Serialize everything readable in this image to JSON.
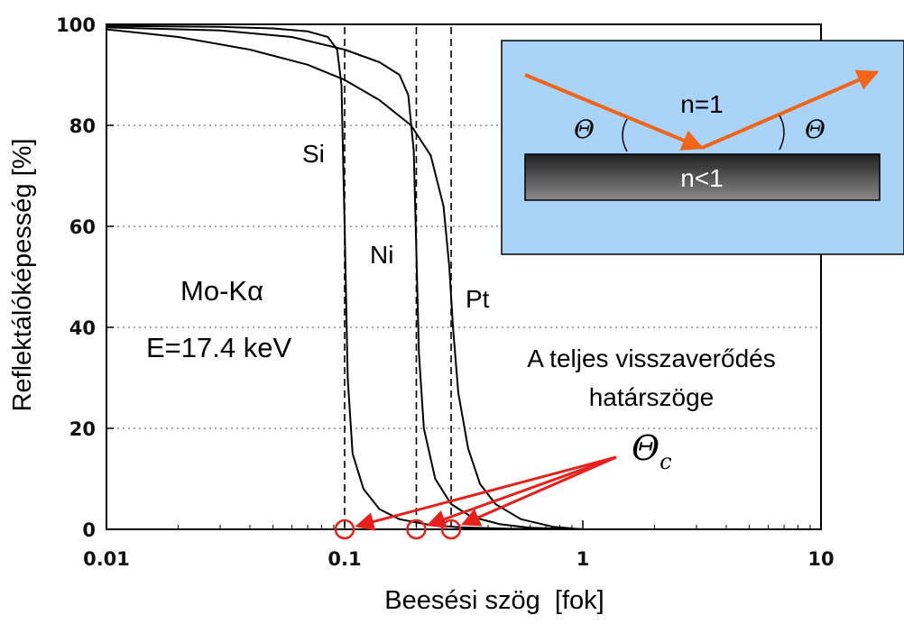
{
  "chart_data": {
    "type": "line",
    "xlabel": "Beesési szög  [fok]",
    "ylabel": "Reflektálóképesség [%]",
    "xscale": "log",
    "xlim": [
      0.01,
      10
    ],
    "ylim": [
      0,
      100
    ],
    "x_ticks": [
      "0.01",
      "0.1",
      "1",
      "10"
    ],
    "y_ticks": [
      "0",
      "20",
      "40",
      "60",
      "80",
      "100"
    ],
    "grid": "dotted horizontal",
    "series": [
      {
        "name": "Si",
        "critical_angle": 0.1,
        "points": [
          [
            0.01,
            99.7
          ],
          [
            0.03,
            99.5
          ],
          [
            0.05,
            99.2
          ],
          [
            0.07,
            98.6
          ],
          [
            0.085,
            97.5
          ],
          [
            0.093,
            95
          ],
          [
            0.097,
            88
          ],
          [
            0.1,
            60
          ],
          [
            0.103,
            30
          ],
          [
            0.108,
            15
          ],
          [
            0.12,
            8
          ],
          [
            0.14,
            4
          ],
          [
            0.17,
            2
          ],
          [
            0.22,
            1
          ],
          [
            0.3,
            0.4
          ],
          [
            0.5,
            0.1
          ],
          [
            1,
            0
          ]
        ]
      },
      {
        "name": "Ni",
        "critical_angle": 0.2,
        "points": [
          [
            0.01,
            99.4
          ],
          [
            0.03,
            98.8
          ],
          [
            0.06,
            97.5
          ],
          [
            0.1,
            95
          ],
          [
            0.14,
            92.5
          ],
          [
            0.17,
            90
          ],
          [
            0.185,
            86
          ],
          [
            0.195,
            75
          ],
          [
            0.2,
            55
          ],
          [
            0.205,
            35
          ],
          [
            0.215,
            20
          ],
          [
            0.24,
            10
          ],
          [
            0.28,
            5
          ],
          [
            0.34,
            2.5
          ],
          [
            0.45,
            1
          ],
          [
            0.6,
            0.3
          ],
          [
            1,
            0
          ]
        ]
      },
      {
        "name": "Pt",
        "critical_angle": 0.28,
        "points": [
          [
            0.01,
            99
          ],
          [
            0.02,
            97.5
          ],
          [
            0.04,
            95
          ],
          [
            0.07,
            92
          ],
          [
            0.1,
            89
          ],
          [
            0.14,
            85
          ],
          [
            0.19,
            80
          ],
          [
            0.23,
            74
          ],
          [
            0.26,
            64
          ],
          [
            0.275,
            52
          ],
          [
            0.285,
            40
          ],
          [
            0.3,
            27
          ],
          [
            0.33,
            16
          ],
          [
            0.37,
            9
          ],
          [
            0.43,
            5
          ],
          [
            0.55,
            2
          ],
          [
            0.75,
            0.5
          ],
          [
            1,
            0
          ]
        ]
      }
    ],
    "annotations": {
      "si": "Si",
      "ni": "Ni",
      "pt": "Pt",
      "source_line1": "Mo-Kα",
      "source_line2": "E=17.4 keV",
      "critical_line1": "A teljes visszaverődés",
      "critical_line2": "határszöge",
      "theta_c": "Θ",
      "theta_c_sub": "c"
    },
    "critical_markers": [
      0.1,
      0.2,
      0.28
    ]
  },
  "inset": {
    "upper_medium": "n=1",
    "lower_medium": "n<1",
    "angle_left": "Θ",
    "angle_right": "Θ",
    "background_color": "#a9d4f7",
    "ray_color": "#f26418",
    "arrow_color": "#e8201b"
  }
}
